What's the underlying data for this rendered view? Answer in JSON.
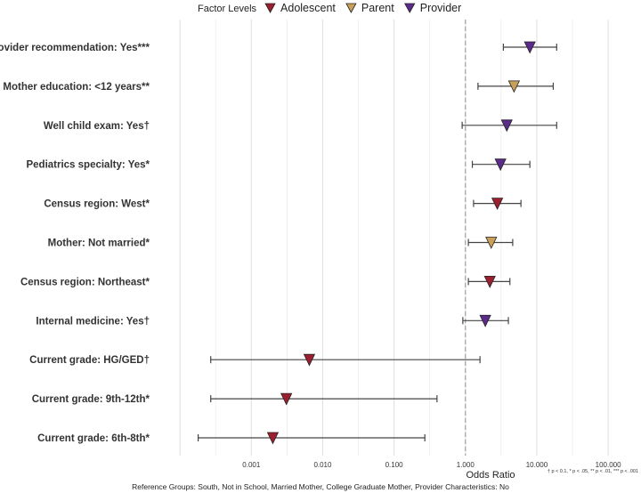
{
  "chart_data": {
    "type": "forest",
    "x_scale": "log10",
    "xlim": [
      5e-05,
      250
    ],
    "xlabel": "Odds Ratio",
    "x_ticks": [
      {
        "value": 0.001,
        "label": "0.001"
      },
      {
        "value": 0.01,
        "label": "0.010"
      },
      {
        "value": 0.1,
        "label": "0.100"
      },
      {
        "value": 1,
        "label": "1.000"
      },
      {
        "value": 10,
        "label": "10.000"
      },
      {
        "value": 100,
        "label": "100.000"
      }
    ],
    "reference_line": 1,
    "legend": {
      "title": "Factor Levels",
      "position": "top",
      "entries": [
        {
          "name": "Adolescent",
          "color": "#9b1f2e"
        },
        {
          "name": "Parent",
          "color": "#c9a05a"
        },
        {
          "name": "Provider",
          "color": "#5b2a8a"
        }
      ]
    },
    "rows": [
      {
        "label": "Provider recommendation: Yes***",
        "group": "Provider",
        "or": 8.0,
        "lo": 3.4,
        "hi": 19.0
      },
      {
        "label": "Mother education: <12 years**",
        "group": "Parent",
        "or": 4.8,
        "lo": 1.5,
        "hi": 17.0
      },
      {
        "label": "Well child exam: Yes†",
        "group": "Provider",
        "or": 3.8,
        "lo": 0.9,
        "hi": 19.0
      },
      {
        "label": "Pediatrics specialty: Yes*",
        "group": "Provider",
        "or": 3.1,
        "lo": 1.25,
        "hi": 8.0
      },
      {
        "label": "Census region: West*",
        "group": "Adolescent",
        "or": 2.8,
        "lo": 1.3,
        "hi": 6.0
      },
      {
        "label": "Mother: Not married*",
        "group": "Parent",
        "or": 2.3,
        "lo": 1.1,
        "hi": 4.6
      },
      {
        "label": "Census region: Northeast*",
        "group": "Adolescent",
        "or": 2.2,
        "lo": 1.1,
        "hi": 4.2
      },
      {
        "label": "Internal medicine: Yes†",
        "group": "Provider",
        "or": 1.9,
        "lo": 0.92,
        "hi": 4.0
      },
      {
        "label": "Current grade: HG/GED†",
        "group": "Adolescent",
        "or": 0.0065,
        "lo": 0.00027,
        "hi": 1.6
      },
      {
        "label": "Current grade: 9th-12th*",
        "group": "Adolescent",
        "or": 0.0031,
        "lo": 0.00027,
        "hi": 0.4
      },
      {
        "label": "Current grade: 6th-8th*",
        "group": "Adolescent",
        "or": 0.002,
        "lo": 0.00018,
        "hi": 0.27
      }
    ],
    "caption": "Reference Groups: South, Not in School, Married Mother, College Graduate Mother, Provider Characteristics: No",
    "significance_note": "† p < 0.1, * p < .05, ** p < .01, *** p < .001"
  }
}
